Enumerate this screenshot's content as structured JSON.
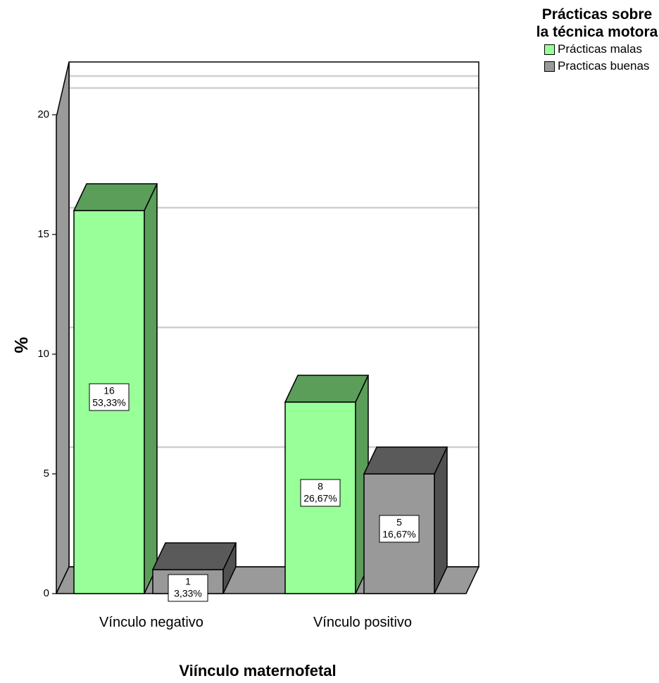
{
  "chart_data": {
    "type": "bar",
    "style": "3d-clustered",
    "categories": [
      "Vínculo negativo",
      "Vínculo positivo"
    ],
    "series": [
      {
        "name": "Prácticas malas",
        "values": [
          16,
          8
        ],
        "labels": [
          [
            "16",
            "53,33%"
          ],
          [
            "8",
            "26,67%"
          ]
        ],
        "color": "#99ff99",
        "side_color": "#5a9e5a",
        "top_color": "#5a9e5a"
      },
      {
        "name": "Practicas buenas",
        "values": [
          1,
          5
        ],
        "labels": [
          [
            "1",
            "3,33%"
          ],
          [
            "5",
            "16,67%"
          ]
        ],
        "color": "#999999",
        "side_color": "#505050",
        "top_color": "#5a5a5a"
      }
    ],
    "ylabel": "%",
    "xlabel": "Viínculo maternofetal",
    "ylim": [
      0,
      20
    ],
    "yticks": [
      0,
      5,
      10,
      15,
      20
    ],
    "grid": true,
    "legend": {
      "title": "Prácticas sobre la técnica motora",
      "position": "top-right"
    }
  }
}
